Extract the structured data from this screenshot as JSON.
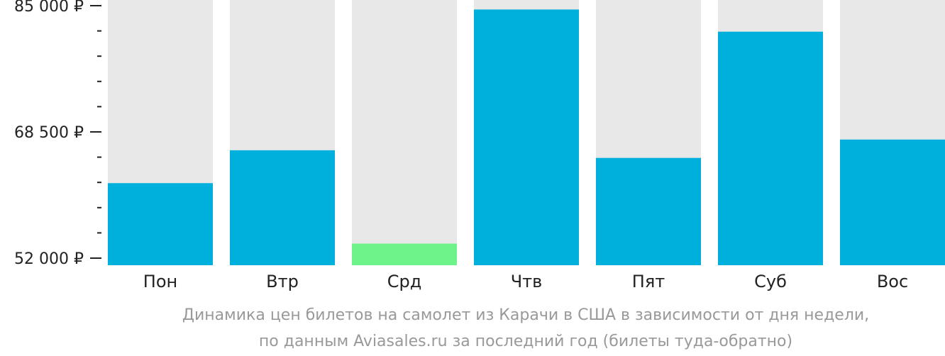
{
  "colors": {
    "bar": "#00b0dc",
    "bar_min": "#6ef28a",
    "bar_background": "#e8e8e8",
    "axis": "#222222",
    "caption": "#999999"
  },
  "chart_data": {
    "type": "bar",
    "categories": [
      "Пон",
      "Втр",
      "Срд",
      "Чтв",
      "Пят",
      "Суб",
      "Вос"
    ],
    "values": [
      61800,
      66100,
      53900,
      84500,
      65100,
      81600,
      67500
    ],
    "highlight_min_index": 2,
    "ylim": [
      52000,
      85000
    ],
    "major_ticks": [
      {
        "value": 85000,
        "label": "85 000 ₽"
      },
      {
        "value": 68500,
        "label": "68 500 ₽"
      },
      {
        "value": 52000,
        "label": "52 000 ₽"
      }
    ],
    "minor_tick_step": 3300,
    "caption_lines": [
      "Динамика цен билетов на самолет из Карачи в США в зависимости от дня недели,",
      "по данным Aviasales.ru за последний год (билеты туда-обратно)"
    ]
  }
}
